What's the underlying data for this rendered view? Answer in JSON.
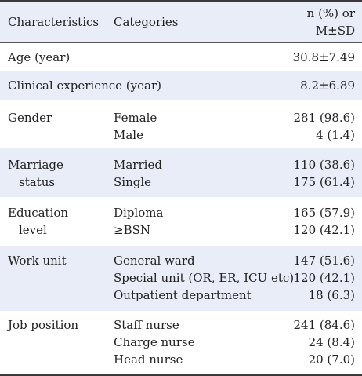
{
  "header": {
    "characteristics": "Characteristics",
    "categories": "Categories",
    "value_line1": "n (%) or",
    "value_line2": "M±SD"
  },
  "rows": [
    {
      "characteristic": [
        "Age (year)"
      ],
      "categories": [],
      "values": [
        "30.8±7.49"
      ]
    },
    {
      "characteristic": [
        "Clinical experience (year)"
      ],
      "categories": [],
      "values": [
        "8.2±6.89"
      ]
    },
    {
      "characteristic": [
        "Gender"
      ],
      "categories": [
        "Female",
        "Male"
      ],
      "values": [
        "281 (98.6)",
        "4 (1.4)"
      ]
    },
    {
      "characteristic": [
        "Marriage",
        "status"
      ],
      "categories": [
        "Married",
        "Single"
      ],
      "values": [
        "110 (38.6)",
        "175 (61.4)"
      ]
    },
    {
      "characteristic": [
        "Education",
        "level"
      ],
      "categories": [
        "Diploma",
        "≥BSN"
      ],
      "values": [
        "165 (57.9)",
        "120 (42.1)"
      ]
    },
    {
      "characteristic": [
        "Work unit"
      ],
      "categories": [
        "General ward",
        "Special unit (OR, ER, ICU etc)",
        "Outpatient department"
      ],
      "values": [
        "147 (51.6)",
        "120 (42.1)",
        "18 (6.3)"
      ]
    },
    {
      "characteristic": [
        "Job position"
      ],
      "categories": [
        "Staff nurse",
        "Charge nurse",
        "Head nurse"
      ],
      "values": [
        "241 (84.6)",
        "24 (8.4)",
        "20 (7.0)"
      ]
    }
  ]
}
